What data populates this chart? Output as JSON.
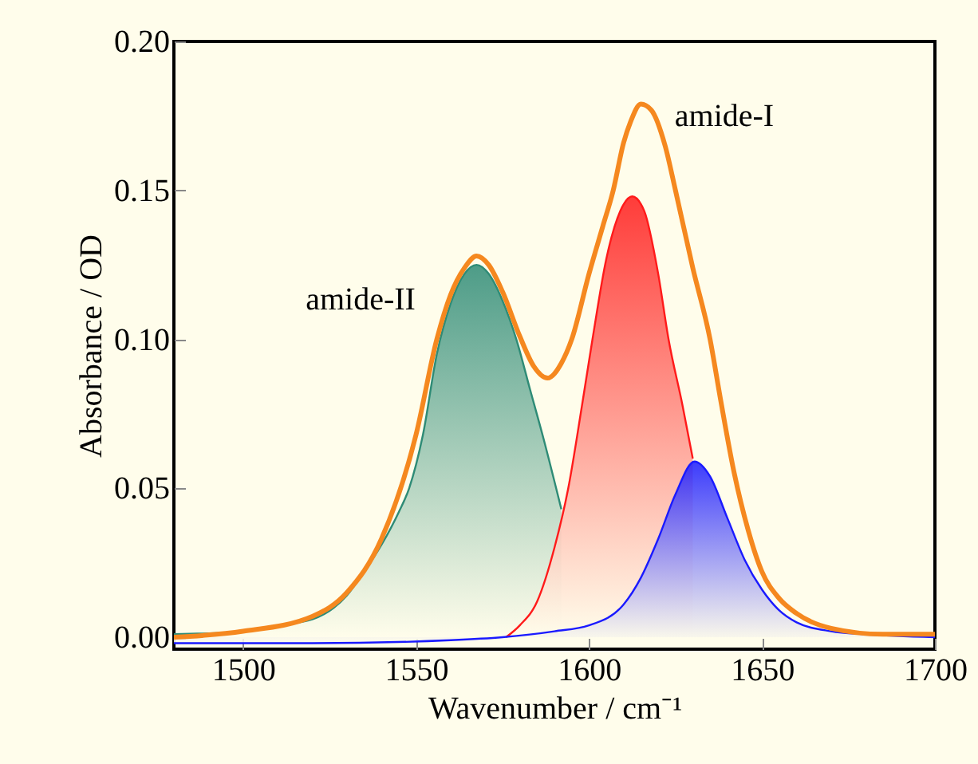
{
  "chart_data": {
    "type": "line",
    "xlabel": "Wavenumber / cm⁻¹",
    "ylabel": "Absorbance / OD",
    "xlim": [
      1480,
      1700
    ],
    "ylim": [
      -0.004,
      0.2
    ],
    "xticks": [
      1500,
      1550,
      1600,
      1650,
      1700
    ],
    "yticks": [
      {
        "value": 0,
        "label": "0.00"
      },
      {
        "value": 0.05,
        "label": "0.05"
      },
      {
        "value": 0.1,
        "label": "0.10"
      },
      {
        "value": 0.15,
        "label": "0.15"
      },
      {
        "value": 0.2,
        "label": "0.20"
      }
    ],
    "series": [
      {
        "type": "area",
        "color": "#2e8b76",
        "x": [
          1480,
          1500,
          1510,
          1520,
          1530,
          1535,
          1540,
          1545,
          1548,
          1552,
          1556,
          1560,
          1564,
          1567.5,
          1571,
          1575,
          1579,
          1583,
          1587,
          1592
        ],
        "values": [
          0.001,
          0.002,
          0.004,
          0.006,
          0.014,
          0.022,
          0.031,
          0.042,
          0.05,
          0.068,
          0.095,
          0.112,
          0.122,
          0.125,
          0.122,
          0.113,
          0.1,
          0.083,
          0.066,
          0.043
        ]
      },
      {
        "type": "area",
        "color": "#ff1a1a",
        "x": [
          1576,
          1580,
          1585,
          1590,
          1594,
          1598,
          1601,
          1605,
          1609,
          1612.5,
          1616,
          1620,
          1623,
          1627,
          1630
        ],
        "values": [
          0.0,
          0.004,
          0.012,
          0.03,
          0.05,
          0.078,
          0.1,
          0.127,
          0.143,
          0.148,
          0.143,
          0.122,
          0.1,
          0.078,
          0.06
        ]
      },
      {
        "type": "area",
        "color": "#1a1aff",
        "x": [
          1480,
          1520,
          1560,
          1575,
          1590,
          1600,
          1610,
          1615,
          1620,
          1625,
          1630.5,
          1635,
          1640,
          1645,
          1650,
          1655,
          1660,
          1670,
          1680,
          1700
        ],
        "values": [
          -0.002,
          -0.002,
          -0.001,
          0.0,
          0.002,
          0.004,
          0.011,
          0.02,
          0.033,
          0.048,
          0.059,
          0.054,
          0.04,
          0.026,
          0.016,
          0.009,
          0.005,
          0.002,
          0.001,
          0.0
        ]
      },
      {
        "type": "line",
        "color": "#f5881f",
        "x": [
          1480,
          1500,
          1520,
          1530,
          1540,
          1550,
          1556,
          1560,
          1564,
          1567.5,
          1571,
          1575,
          1580,
          1584,
          1588,
          1592,
          1595,
          1600,
          1604,
          1607,
          1610,
          1612,
          1615,
          1618,
          1622,
          1625,
          1630,
          1635,
          1638,
          1642,
          1646,
          1650,
          1655,
          1660,
          1670,
          1685,
          1700
        ],
        "values": [
          0.0,
          0.002,
          0.007,
          0.015,
          0.033,
          0.068,
          0.1,
          0.115,
          0.124,
          0.128,
          0.125,
          0.116,
          0.101,
          0.091,
          0.087,
          0.092,
          0.1,
          0.122,
          0.138,
          0.15,
          0.166,
          0.173,
          0.179,
          0.177,
          0.165,
          0.15,
          0.124,
          0.1,
          0.08,
          0.055,
          0.036,
          0.022,
          0.013,
          0.008,
          0.003,
          0.001,
          0.001
        ]
      }
    ],
    "annotations": [
      "amide-I",
      "amide-II"
    ]
  }
}
